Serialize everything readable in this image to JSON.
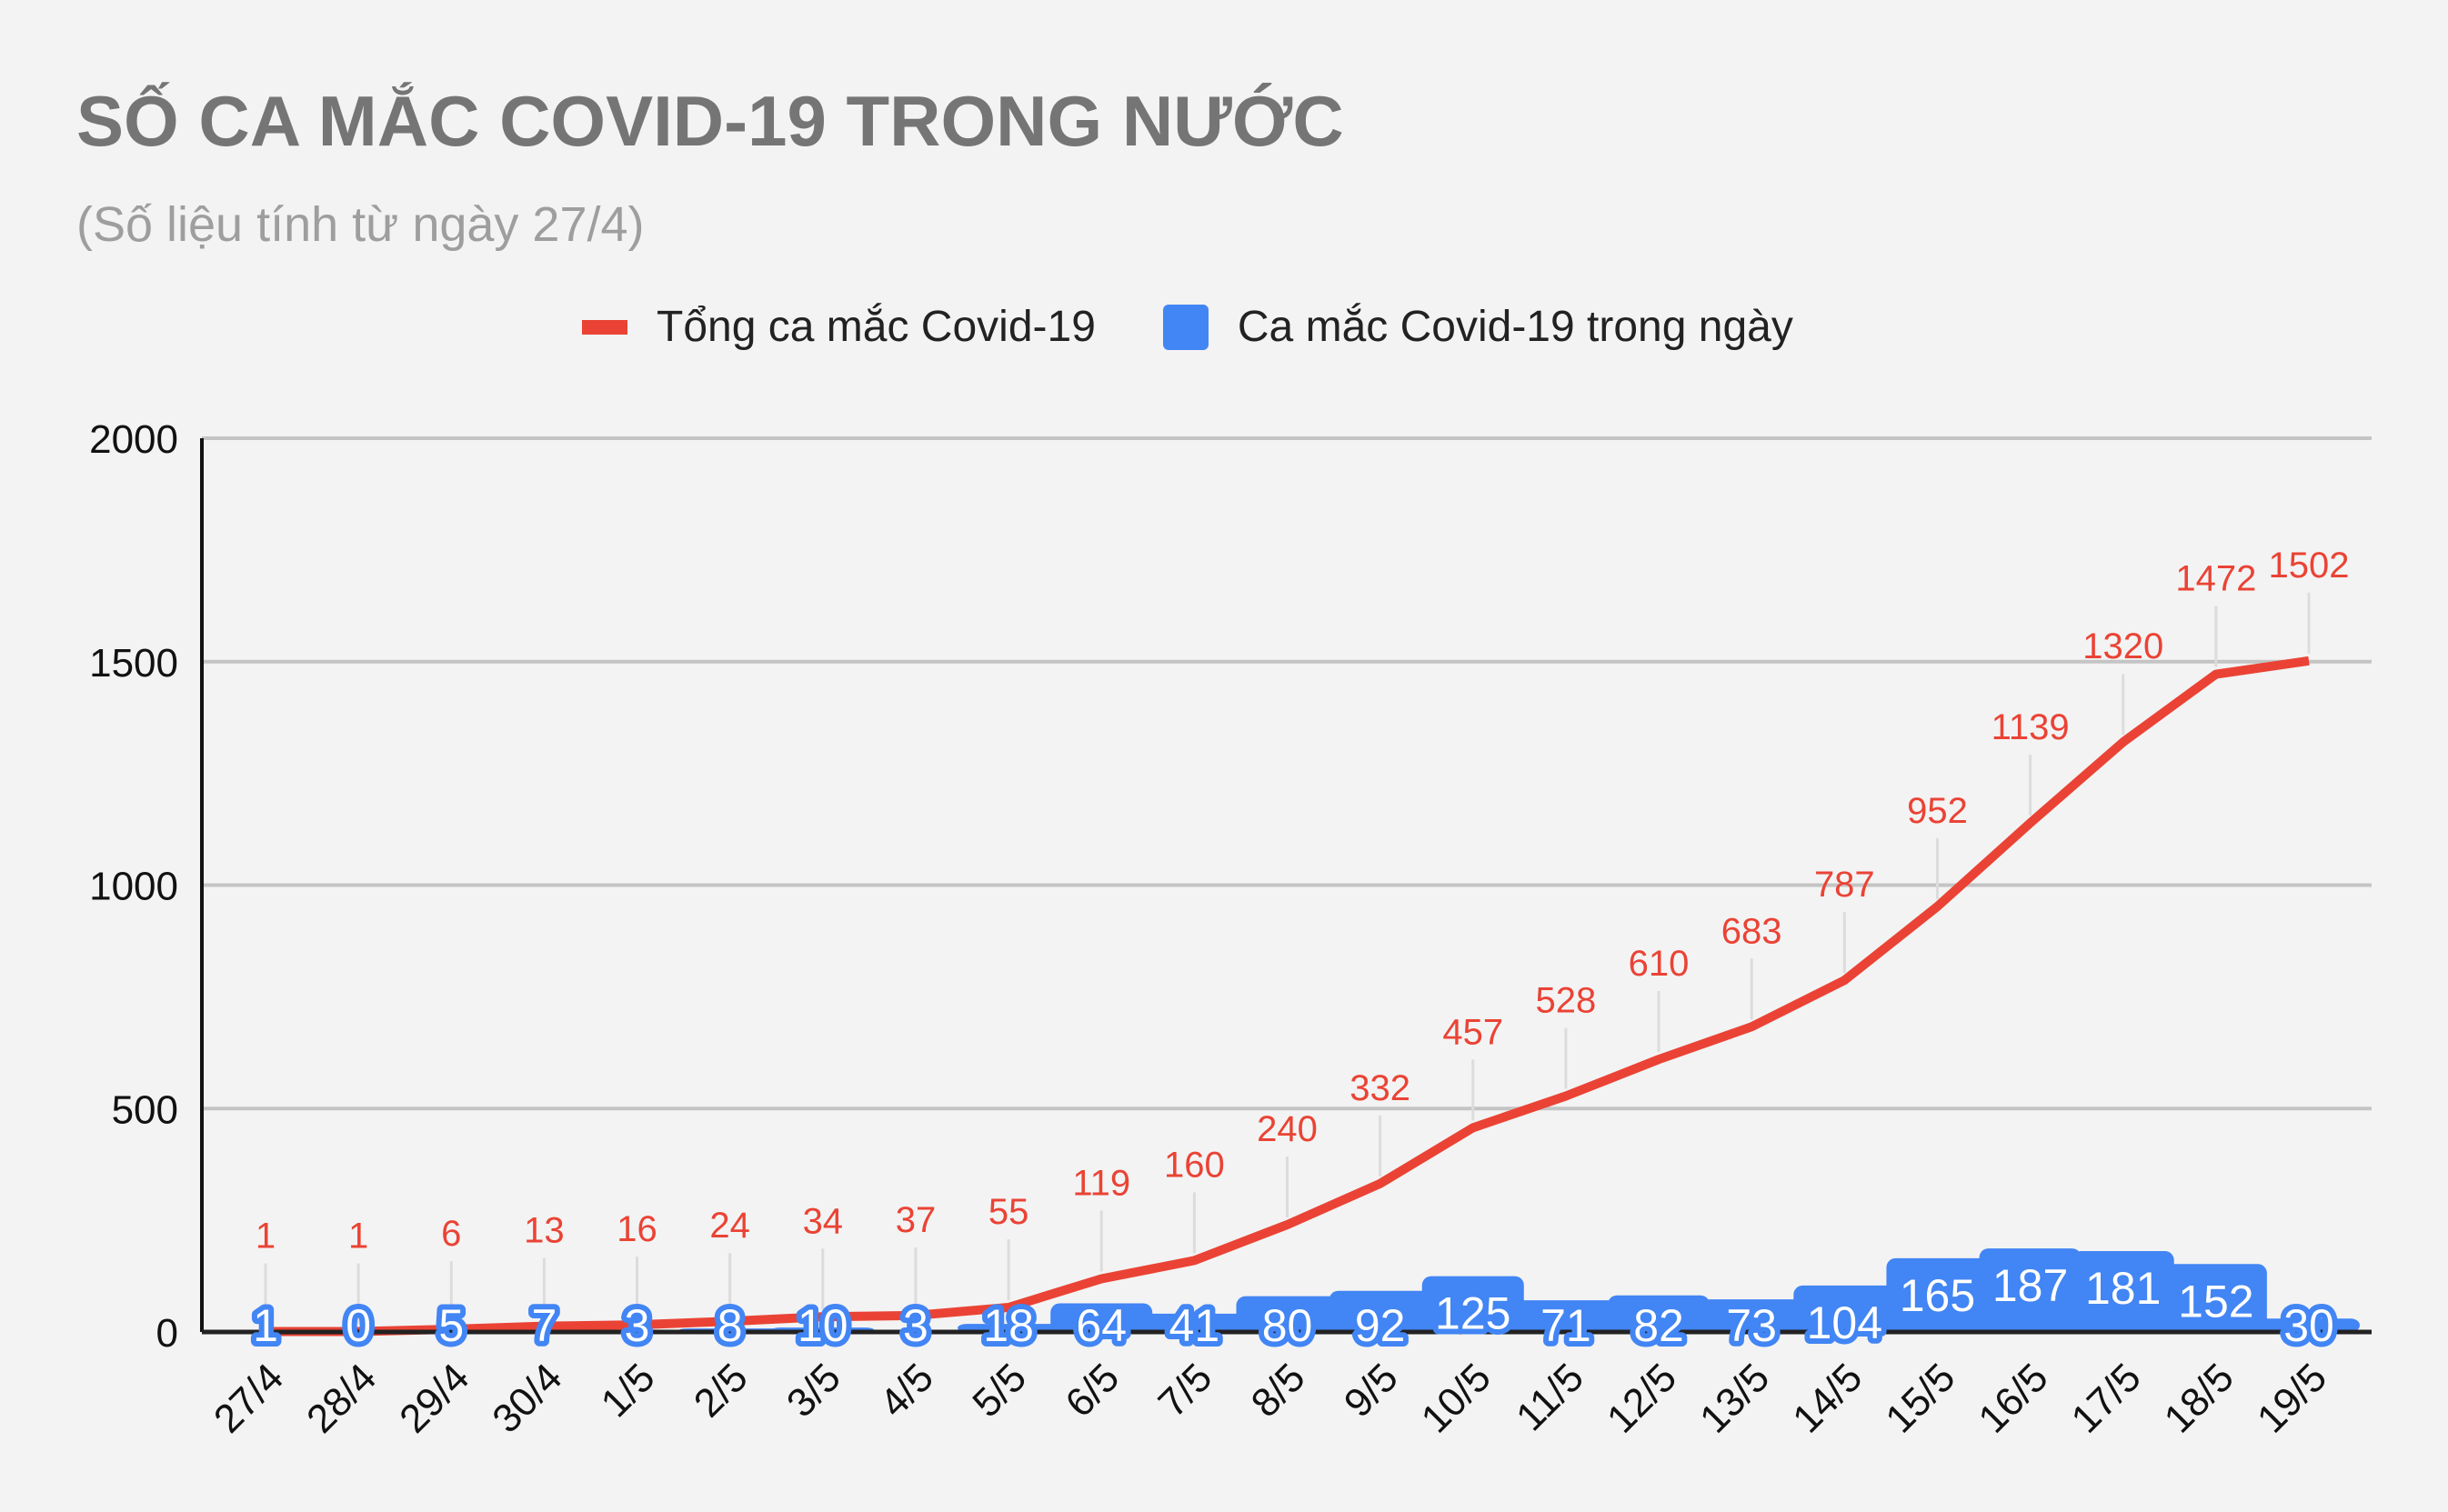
{
  "header": {
    "title": "SỐ CA MẮC COVID-19 TRONG NƯỚC",
    "subtitle": "(Số liệu tính từ ngày 27/4)"
  },
  "legend": {
    "items": [
      {
        "label": "Tổng ca mắc Covid-19",
        "color": "#ea4335",
        "type": "line"
      },
      {
        "label": "Ca mắc Covid-19 trong ngày",
        "color": "#4285f4",
        "type": "bar"
      }
    ]
  },
  "colors": {
    "line": "#ea4335",
    "bar": "#4285f4",
    "background": "#f3f3f3",
    "grid": "#c4c4c4"
  },
  "chart_data": {
    "type": "bar+line",
    "title": "SỐ CA MẮC COVID-19 TRONG NƯỚC",
    "subtitle": "(Số liệu tính từ ngày 27/4)",
    "xlabel": "",
    "ylabel": "",
    "ylim": [
      0,
      2000
    ],
    "yticks": [
      0,
      500,
      1000,
      1500,
      2000
    ],
    "grid": true,
    "legend_position": "top",
    "categories": [
      "27/4",
      "28/4",
      "29/4",
      "30/4",
      "1/5",
      "2/5",
      "3/5",
      "4/5",
      "5/5",
      "6/5",
      "7/5",
      "8/5",
      "9/5",
      "10/5",
      "11/5",
      "12/5",
      "13/5",
      "14/5",
      "15/5",
      "16/5",
      "17/5",
      "18/5",
      "19/5"
    ],
    "series": [
      {
        "name": "Tổng ca mắc Covid-19",
        "type": "line",
        "color": "#ea4335",
        "values": [
          1,
          1,
          6,
          13,
          16,
          24,
          34,
          37,
          55,
          119,
          160,
          240,
          332,
          457,
          528,
          610,
          683,
          787,
          952,
          1139,
          1320,
          1472,
          1502
        ]
      },
      {
        "name": "Ca mắc Covid-19 trong ngày",
        "type": "bar",
        "color": "#4285f4",
        "values": [
          1,
          0,
          5,
          7,
          3,
          8,
          10,
          3,
          18,
          64,
          41,
          80,
          92,
          125,
          71,
          82,
          73,
          104,
          165,
          187,
          181,
          152,
          30
        ]
      }
    ]
  }
}
